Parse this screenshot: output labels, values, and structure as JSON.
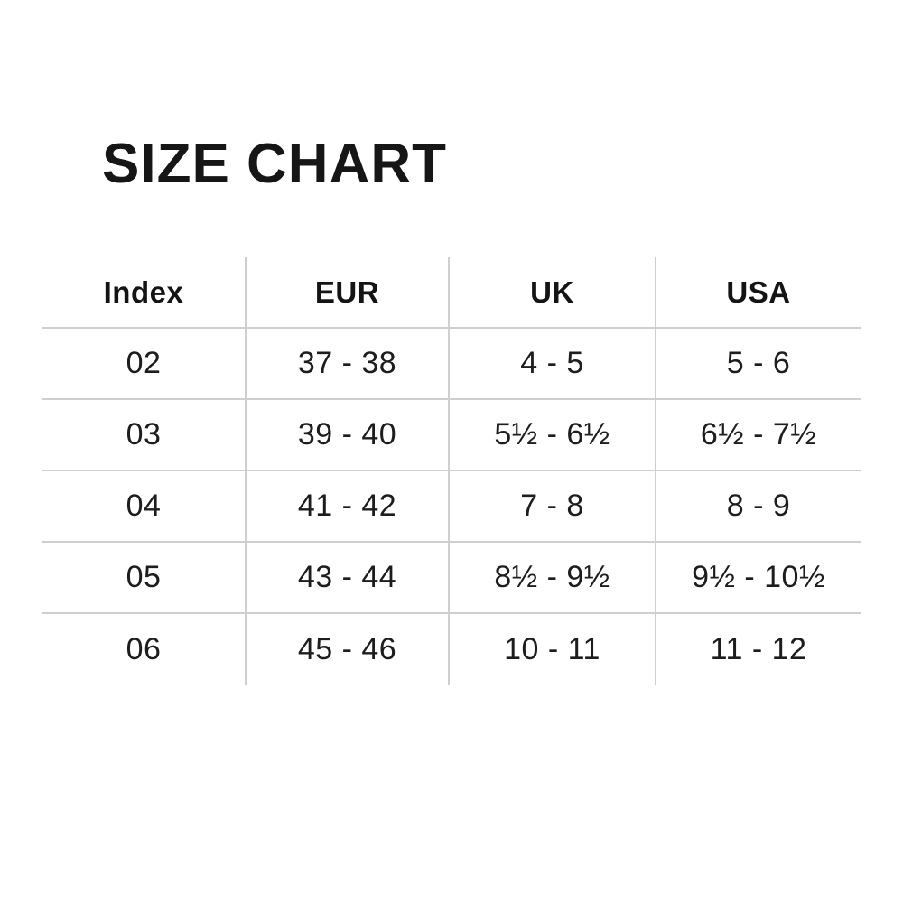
{
  "title": "SIZE CHART",
  "chart_data": {
    "type": "table",
    "title": "SIZE CHART",
    "columns": [
      "Index",
      "EUR",
      "UK",
      "USA"
    ],
    "rows": [
      [
        "02",
        "37 - 38",
        "4 - 5",
        "5 - 6"
      ],
      [
        "03",
        "39 - 40",
        "5½ - 6½",
        "6½ - 7½"
      ],
      [
        "04",
        "41 - 42",
        "7 - 8",
        "8 - 9"
      ],
      [
        "05",
        "43 - 44",
        "8½ - 9½",
        "9½ - 10½"
      ],
      [
        "06",
        "45 - 46",
        "10 - 11",
        "11 - 12"
      ]
    ],
    "layout": {
      "grid": "horizontal separators between all rows, vertical separators between columns, no outer border",
      "line_color": "#cfcfcf",
      "text_color": "#1c1c1c",
      "background": "#ffffff"
    }
  },
  "colors": {
    "background": "#ffffff",
    "text": "#1c1c1c",
    "line": "#cfcfcf"
  }
}
